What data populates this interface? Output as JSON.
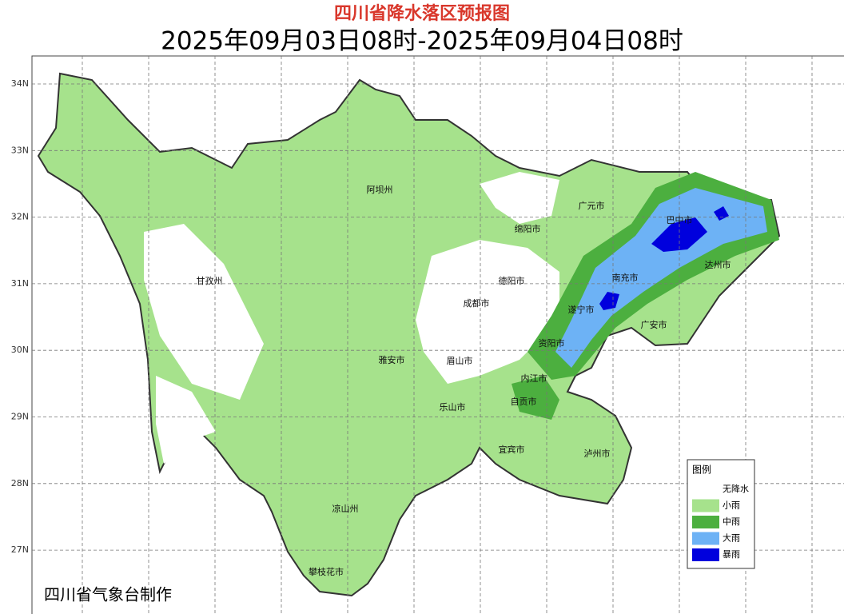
{
  "title": "四川省降水落区预报图",
  "subtitle": "2025年09月03日08时-2025年09月04日08时",
  "lat_labels": [
    "34N",
    "33N",
    "32N",
    "31N",
    "30N",
    "29N",
    "28N",
    "27N"
  ],
  "cities": [
    "阿坝州",
    "甘孜州",
    "绵阳市",
    "广元市",
    "巴中市",
    "达州市",
    "南充市",
    "德阳市",
    "成都市",
    "遂宁市",
    "广安市",
    "资阳市",
    "雅安市",
    "眉山市",
    "内江市",
    "自贡市",
    "乐山市",
    "宜宾市",
    "泸州市",
    "凉山州",
    "攀枝花市"
  ],
  "legend": {
    "title": "图例",
    "items": [
      {
        "label": "无降水",
        "color": "#ffffff"
      },
      {
        "label": "小雨",
        "color": "#a6e28c"
      },
      {
        "label": "中雨",
        "color": "#4caf3f"
      },
      {
        "label": "大雨",
        "color": "#6db2f5"
      },
      {
        "label": "暴雨",
        "color": "#0000dd"
      }
    ]
  },
  "credit": "四川省气象台制作"
}
